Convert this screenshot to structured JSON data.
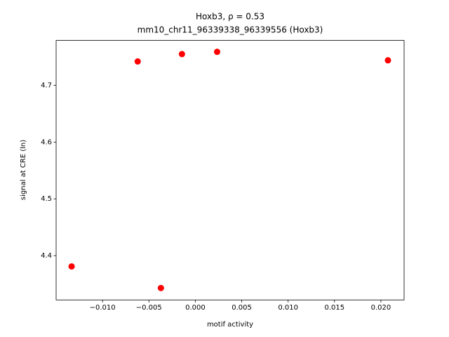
{
  "chart_data": {
    "type": "scatter",
    "title": "Hoxb3, ρ = 0.53",
    "subtitle": "mm10_chr11_96339338_96339556 (Hoxb3)",
    "x_label": "motif activity",
    "y_label": "signal at CRE (ln)",
    "color": "#ff0000",
    "x": [
      -0.01333,
      -0.00621,
      -0.00371,
      -0.00144,
      0.00235,
      0.02076
    ],
    "values": [
      4.381,
      4.742,
      4.343,
      4.755,
      4.759,
      4.744
    ],
    "xlim": [
      -0.015,
      0.0225
    ],
    "ylim": [
      4.322,
      4.779
    ],
    "xticks": [
      {
        "value": -0.01,
        "label": "−0.010"
      },
      {
        "value": -0.005,
        "label": "−0.005"
      },
      {
        "value": 0,
        "label": "0.000"
      },
      {
        "value": 0.005,
        "label": "0.005"
      },
      {
        "value": 0.01,
        "label": "0.010"
      },
      {
        "value": 0.015,
        "label": "0.015"
      },
      {
        "value": 0.02,
        "label": "0.020"
      }
    ],
    "yticks": [
      4.4,
      4.5,
      4.6,
      4.7
    ]
  }
}
